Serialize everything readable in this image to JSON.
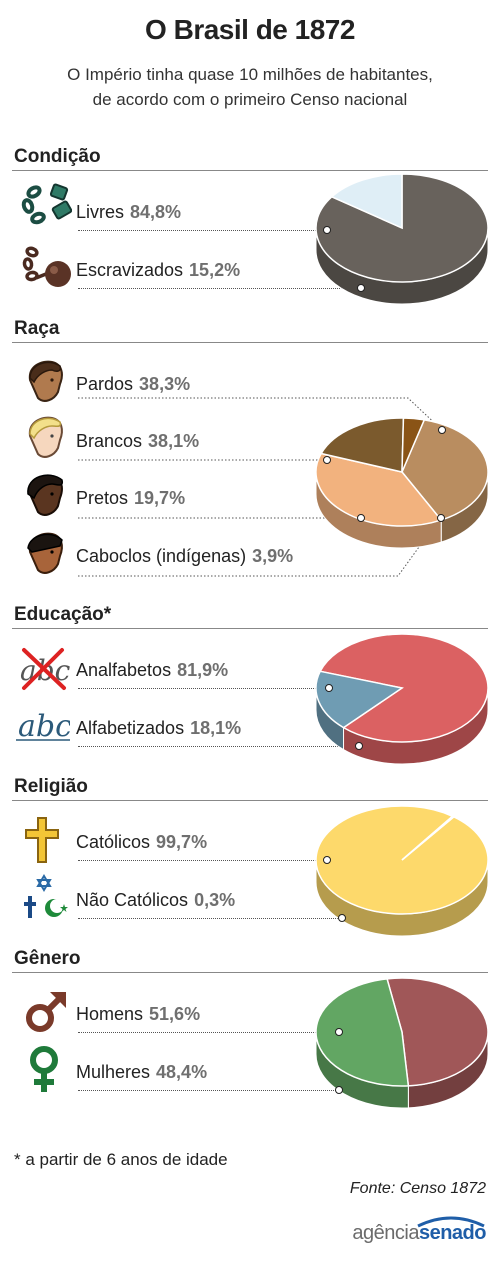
{
  "header": {
    "title": "O Brasil de 1872",
    "subtitle_line1": "O Império tinha quase 10 milhões de habitantes,",
    "subtitle_line2": "de acordo com o primeiro Censo nacional"
  },
  "sections": [
    {
      "key": "condicao",
      "title": "Condição",
      "items": [
        {
          "label": "Livres",
          "value_text": "84,8%",
          "icon": "broken-chain-icon"
        },
        {
          "label": "Escravizados",
          "value_text": "15,2%",
          "icon": "ball-and-chain-icon"
        }
      ]
    },
    {
      "key": "raca",
      "title": "Raça",
      "items": [
        {
          "label": "Pardos",
          "value_text": "38,3%",
          "icon": "pardo-face-icon"
        },
        {
          "label": "Brancos",
          "value_text": "38,1%",
          "icon": "branco-face-icon"
        },
        {
          "label": "Pretos",
          "value_text": "19,7%",
          "icon": "preto-face-icon"
        },
        {
          "label": "Caboclos (indígenas)",
          "value_text": "3,9%",
          "icon": "caboclo-face-icon"
        }
      ]
    },
    {
      "key": "educacao",
      "title": "Educação*",
      "items": [
        {
          "label": "Analfabetos",
          "value_text": "81,9%",
          "icon": "crossed-abc-icon"
        },
        {
          "label": "Alfabetizados",
          "value_text": "18,1%",
          "icon": "abc-handwriting-icon"
        }
      ]
    },
    {
      "key": "religiao",
      "title": "Religião",
      "items": [
        {
          "label": "Católicos",
          "value_text": "99,7%",
          "icon": "cross-icon"
        },
        {
          "label": "Não Católicos",
          "value_text": "0,3%",
          "icon": "star-cross-crescent-icon"
        }
      ]
    },
    {
      "key": "genero",
      "title": "Gênero",
      "items": [
        {
          "label": "Homens",
          "value_text": "51,6%",
          "icon": "male-symbol-icon"
        },
        {
          "label": "Mulheres",
          "value_text": "48,4%",
          "icon": "female-symbol-icon"
        }
      ]
    }
  ],
  "footnote": "* a partir de 6 anos de idade",
  "source": "Fonte: Censo 1872",
  "brand": {
    "part1": "agência",
    "part2": "senado"
  },
  "chart_data": [
    {
      "type": "pie",
      "title": "Condição",
      "labels": [
        "Livres",
        "Escravizados"
      ],
      "values": [
        84.8,
        15.2
      ],
      "colors": [
        "#68625c",
        "#dfeef6"
      ]
    },
    {
      "type": "pie",
      "title": "Raça",
      "labels": [
        "Pardos",
        "Brancos",
        "Pretos",
        "Caboclos (indígenas)"
      ],
      "values": [
        38.3,
        38.1,
        19.7,
        3.9
      ],
      "colors": [
        "#b98d60",
        "#f2b27e",
        "#7b5a2d",
        "#8a5416"
      ]
    },
    {
      "type": "pie",
      "title": "Educação*",
      "labels": [
        "Analfabetos",
        "Alfabetizados"
      ],
      "values": [
        81.9,
        18.1
      ],
      "colors": [
        "#db6162",
        "#6f9cb3"
      ]
    },
    {
      "type": "pie",
      "title": "Religião",
      "labels": [
        "Católicos",
        "Não Católicos"
      ],
      "values": [
        99.7,
        0.3
      ],
      "colors": [
        "#fdd96b",
        "#bfe0ea"
      ]
    },
    {
      "type": "pie",
      "title": "Gênero",
      "labels": [
        "Homens",
        "Mulheres"
      ],
      "values": [
        51.6,
        48.4
      ],
      "colors": [
        "#a05758",
        "#62a663"
      ]
    }
  ]
}
